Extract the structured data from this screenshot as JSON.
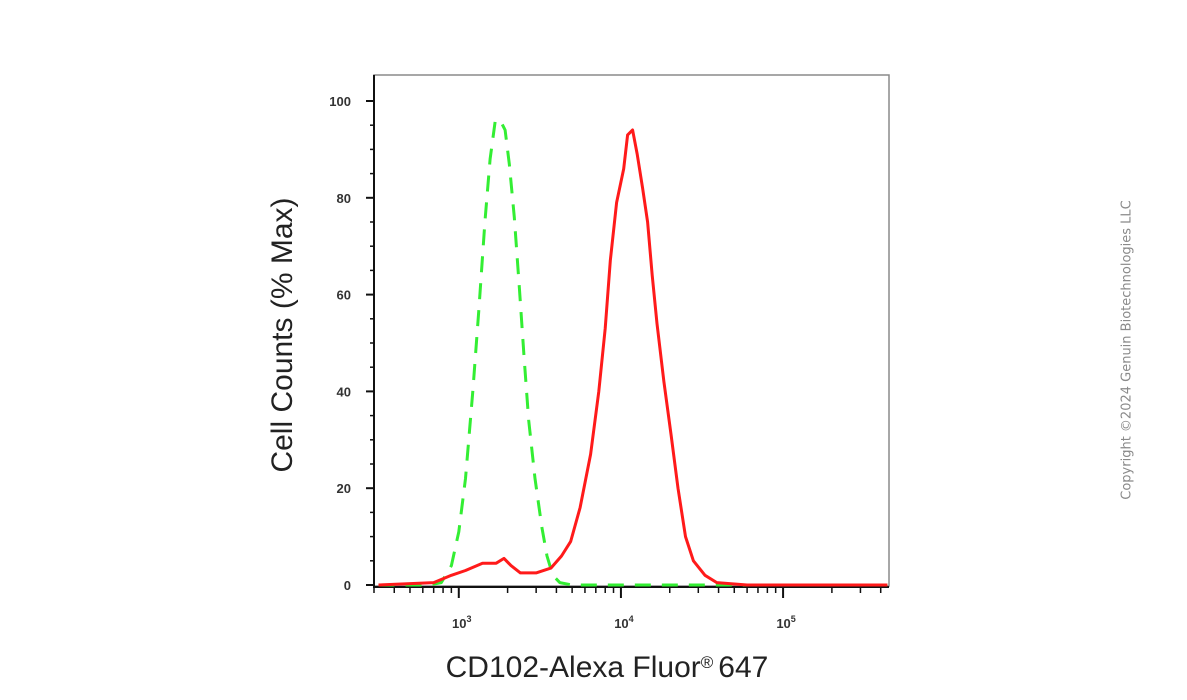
{
  "chart_data": {
    "type": "line",
    "title": "",
    "xlabel": "CD102-Alexa Fluor",
    "xlabel_mark": "®",
    "xlabel_suffix": "647",
    "ylabel": "Cell Counts (% Max)",
    "xscale": "log",
    "xlim": [
      300,
      450000
    ],
    "ylim": [
      0,
      105
    ],
    "grid": false,
    "legend": "none",
    "yticks": [
      {
        "value": 0,
        "label": "0"
      },
      {
        "value": 20,
        "label": "20"
      },
      {
        "value": 40,
        "label": "40"
      },
      {
        "value": 60,
        "label": "60"
      },
      {
        "value": 80,
        "label": "80"
      },
      {
        "value": 100,
        "label": "100"
      }
    ],
    "xticks": [
      {
        "value": 1000,
        "base": "10",
        "exp": "3"
      },
      {
        "value": 10000,
        "base": "10",
        "exp": "4"
      },
      {
        "value": 100000,
        "base": "10",
        "exp": "5"
      }
    ],
    "series": [
      {
        "color": "#ff1a1a",
        "dash": "solid",
        "points": [
          [
            320,
            0
          ],
          [
            700,
            0.5
          ],
          [
            900,
            2
          ],
          [
            1100,
            3
          ],
          [
            1400,
            4.5
          ],
          [
            1700,
            4.5
          ],
          [
            1900,
            5.5
          ],
          [
            2100,
            4
          ],
          [
            2400,
            2.5
          ],
          [
            3000,
            2.5
          ],
          [
            3700,
            3.5
          ],
          [
            4300,
            6
          ],
          [
            4900,
            9
          ],
          [
            5600,
            16
          ],
          [
            6500,
            27
          ],
          [
            7300,
            40
          ],
          [
            8000,
            53
          ],
          [
            8600,
            67
          ],
          [
            9400,
            79
          ],
          [
            10400,
            86
          ],
          [
            11000,
            93
          ],
          [
            11800,
            94
          ],
          [
            12600,
            89
          ],
          [
            13600,
            82
          ],
          [
            14600,
            75
          ],
          [
            15600,
            64
          ],
          [
            16700,
            54
          ],
          [
            18400,
            42
          ],
          [
            20400,
            31
          ],
          [
            22500,
            20
          ],
          [
            25000,
            10
          ],
          [
            28000,
            5
          ],
          [
            33000,
            2
          ],
          [
            39000,
            0.5
          ],
          [
            60000,
            0
          ],
          [
            440000,
            0
          ]
        ]
      },
      {
        "color": "#33ee33",
        "dash": "dashed",
        "points": [
          [
            320,
            0
          ],
          [
            650,
            0
          ],
          [
            780,
            0.5
          ],
          [
            900,
            4
          ],
          [
            1000,
            11
          ],
          [
            1100,
            22
          ],
          [
            1220,
            40
          ],
          [
            1330,
            57
          ],
          [
            1450,
            75
          ],
          [
            1560,
            88
          ],
          [
            1680,
            96
          ],
          [
            1800,
            96
          ],
          [
            1930,
            94
          ],
          [
            2050,
            87
          ],
          [
            2200,
            76
          ],
          [
            2370,
            61
          ],
          [
            2530,
            47
          ],
          [
            2700,
            34
          ],
          [
            2950,
            22
          ],
          [
            3250,
            12
          ],
          [
            3500,
            6
          ],
          [
            3800,
            2
          ],
          [
            4200,
            0.5
          ],
          [
            5000,
            0
          ],
          [
            440000,
            0
          ]
        ]
      }
    ]
  },
  "watermark": {
    "text": "Copyright ©2024 Genuin Biotechnologies LLC",
    "color": "#8a8a8a"
  }
}
